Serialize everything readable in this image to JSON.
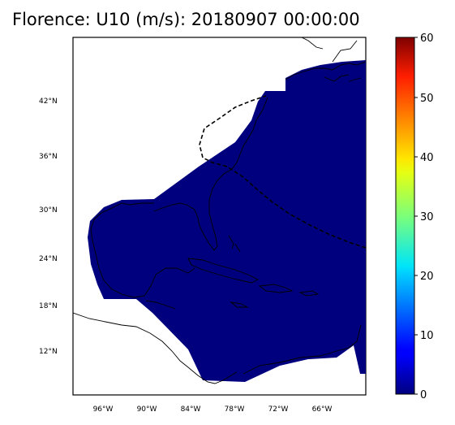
{
  "title": "Florence: U10 (m/s): 20180907 00:00:00",
  "lat_labels": [
    "42°N",
    "36°N",
    "30°N",
    "24°N",
    "18°N",
    "12°N"
  ],
  "lon_labels": [
    "96°W",
    "90°W",
    "84°W",
    "78°W",
    "72°W",
    "66°W"
  ],
  "colorbar": {
    "min": 0,
    "max": 60,
    "ticks": [
      "0",
      "10",
      "20",
      "30",
      "40",
      "50",
      "60"
    ],
    "colormap": "jet"
  },
  "colors": {
    "field": "#00007f",
    "coast": "#000000"
  }
}
